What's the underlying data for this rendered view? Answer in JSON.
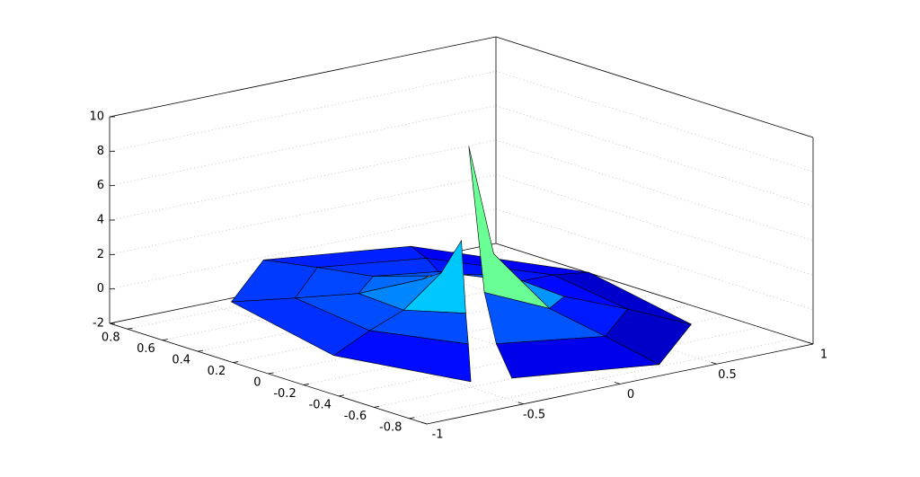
{
  "chart_data": {
    "type": "surface",
    "x": [
      [
        -0.08,
        0.04,
        0.13,
        0.14,
        0.08,
        -0.04,
        -0.13,
        -0.14,
        -0.1
      ],
      [
        -0.2,
        0.1,
        0.35,
        0.39,
        0.2,
        -0.1,
        -0.35,
        -0.39,
        -0.26
      ],
      [
        -0.33,
        0.17,
        0.56,
        0.63,
        0.33,
        -0.17,
        -0.56,
        -0.63,
        -0.42
      ],
      [
        -0.45,
        0.23,
        0.78,
        0.87,
        0.45,
        -0.23,
        -0.78,
        -0.87,
        -0.58
      ]
    ],
    "y": [
      [
        -0.13,
        -0.14,
        -0.08,
        0.04,
        0.13,
        0.14,
        0.08,
        -0.04,
        -0.11
      ],
      [
        -0.35,
        -0.39,
        -0.2,
        0.1,
        0.35,
        0.39,
        0.2,
        -0.1,
        -0.31
      ],
      [
        -0.56,
        -0.63,
        -0.33,
        0.17,
        0.56,
        0.63,
        0.33,
        -0.17,
        -0.5
      ],
      [
        -0.78,
        -0.87,
        -0.45,
        0.23,
        0.78,
        0.87,
        0.45,
        -0.23,
        -0.69
      ]
    ],
    "z": [
      [
        9.5,
        3,
        1.5,
        1,
        0.8,
        1,
        1.2,
        2,
        4
      ],
      [
        2,
        0.5,
        0,
        -0.2,
        0,
        0.3,
        0.5,
        0.6,
        0.8
      ],
      [
        0,
        -0.5,
        -0.8,
        -0.6,
        -0.2,
        0.2,
        0.3,
        0.2,
        0
      ],
      [
        -1,
        -1.5,
        -1.8,
        -1.2,
        -0.5,
        0,
        0.2,
        -0.5,
        -1.2
      ]
    ],
    "xlim": [
      -1,
      1
    ],
    "xticks": [
      -1,
      -0.5,
      0,
      0.5,
      1
    ],
    "ylim": [
      -0.9,
      0.9
    ],
    "yticks": [
      -0.8,
      -0.6,
      -0.4,
      -0.2,
      0,
      0.2,
      0.4,
      0.6,
      0.8
    ],
    "zlim": [
      -2,
      10
    ],
    "zticks": [
      -2,
      0,
      2,
      4,
      6,
      8,
      10
    ],
    "grid": true,
    "colormap": "jet"
  }
}
